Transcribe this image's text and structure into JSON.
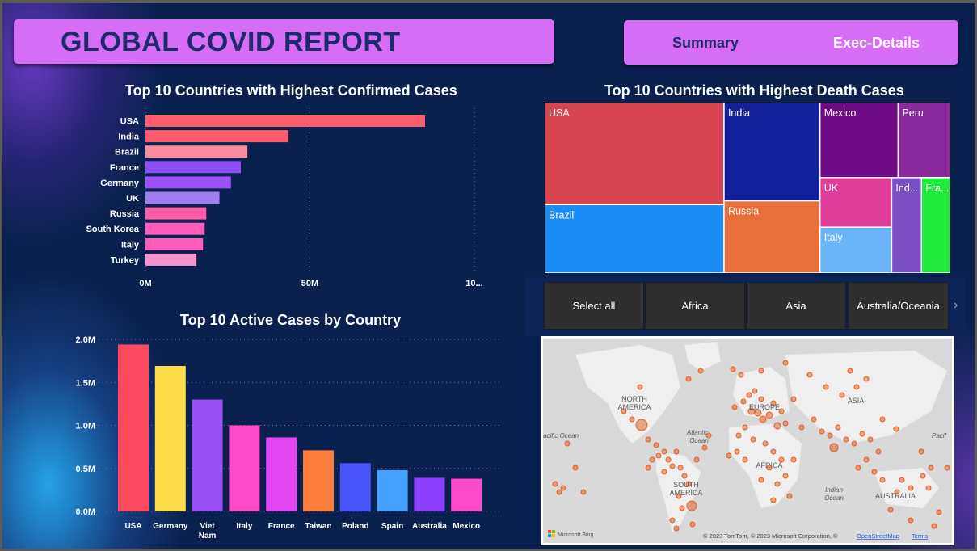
{
  "header": {
    "title": "GLOBAL COVID REPORT"
  },
  "nav": {
    "summary": "Summary",
    "exec": "Exec-Details"
  },
  "charts": {
    "confirmed_title": "Top 10 Countries with Highest Confirmed Cases",
    "death_title": "Top 10 Countries with Highest Death Cases",
    "active_title": "Top 10 Active Cases by Country"
  },
  "slicer": {
    "items": [
      "Select all",
      "Africa",
      "Asia",
      "Australia/Oceania"
    ],
    "next_icon": "chevron-right-icon"
  },
  "map": {
    "labels": {
      "north_america": [
        "NORTH",
        "AMERICA"
      ],
      "south_america": [
        "SOUTH",
        "AMERICA"
      ],
      "europe": "EUROPE",
      "asia": "ASIA",
      "africa": "AFRICA",
      "australia": "AUSTRALIA",
      "atlantic": [
        "Atlantic",
        "Ocean"
      ],
      "pacific_left": "acific Ocean",
      "pacific_right": "Pacif",
      "indian": [
        "Indian",
        "Ocean"
      ]
    },
    "brand": "Microsoft Bing",
    "copyright": "© 2023 TomTom, © 2023 Microsoft Corporation, ©",
    "osm": "OpenStreetMap",
    "terms": "Terms",
    "marker_color": "#e0602a"
  },
  "chart_data": [
    {
      "type": "bar",
      "orientation": "horizontal",
      "title": "Top 10 Countries with Highest Confirmed Cases",
      "categories": [
        "USA",
        "India",
        "Brazil",
        "France",
        "Germany",
        "UK",
        "Russia",
        "South Korea",
        "Italy",
        "Turkey"
      ],
      "values": [
        85000000,
        43500000,
        31000000,
        29000000,
        26000000,
        22500000,
        18500000,
        18000000,
        17500000,
        15500000
      ],
      "colors": [
        "#fd5c6b",
        "#fd5c6b",
        "#fb8b9a",
        "#8c4ef5",
        "#9a52f5",
        "#a07ef0",
        "#fd5ca7",
        "#fd5cb8",
        "#fd5cb8",
        "#f595cc"
      ],
      "xticks": [
        "0M",
        "50M",
        "10..."
      ],
      "xlim": [
        0,
        100000000
      ],
      "grid": true
    },
    {
      "type": "treemap",
      "title": "Top 10 Countries with Highest Death Cases",
      "categories": [
        "USA",
        "Brazil",
        "India",
        "Russia",
        "Mexico",
        "Peru",
        "UK",
        "Italy",
        "Ind...",
        "Fra..."
      ],
      "values": [
        1030000,
        690000,
        530000,
        390000,
        330000,
        220000,
        200000,
        185000,
        160000,
        155000
      ],
      "colors": [
        "#d84450",
        "#1a8cf5",
        "#13209c",
        "#e86f3a",
        "#6e0a85",
        "#8a2a9e",
        "#e23c9a",
        "#6ab4fa",
        "#7a4fc6",
        "#1fea3c"
      ]
    },
    {
      "type": "bar",
      "title": "Top 10 Active Cases by Country",
      "categories": [
        "USA",
        "Germany",
        "Viet Nam",
        "Italy",
        "France",
        "Taiwan",
        "Poland",
        "Spain",
        "Australia",
        "Mexico"
      ],
      "values": [
        1940000,
        1690000,
        1300000,
        1000000,
        860000,
        710000,
        560000,
        480000,
        390000,
        380000
      ],
      "colors": [
        "#fd4a5e",
        "#fedc4a",
        "#9a4ef5",
        "#fd4ac8",
        "#e445f2",
        "#fe7d3c",
        "#4a56fd",
        "#46a0fd",
        "#8c3efc",
        "#fd4acb"
      ],
      "yticks": [
        "0.0M",
        "0.5M",
        "1.0M",
        "1.5M",
        "2.0M"
      ],
      "ylim": [
        0,
        2000000
      ],
      "grid": true
    }
  ]
}
